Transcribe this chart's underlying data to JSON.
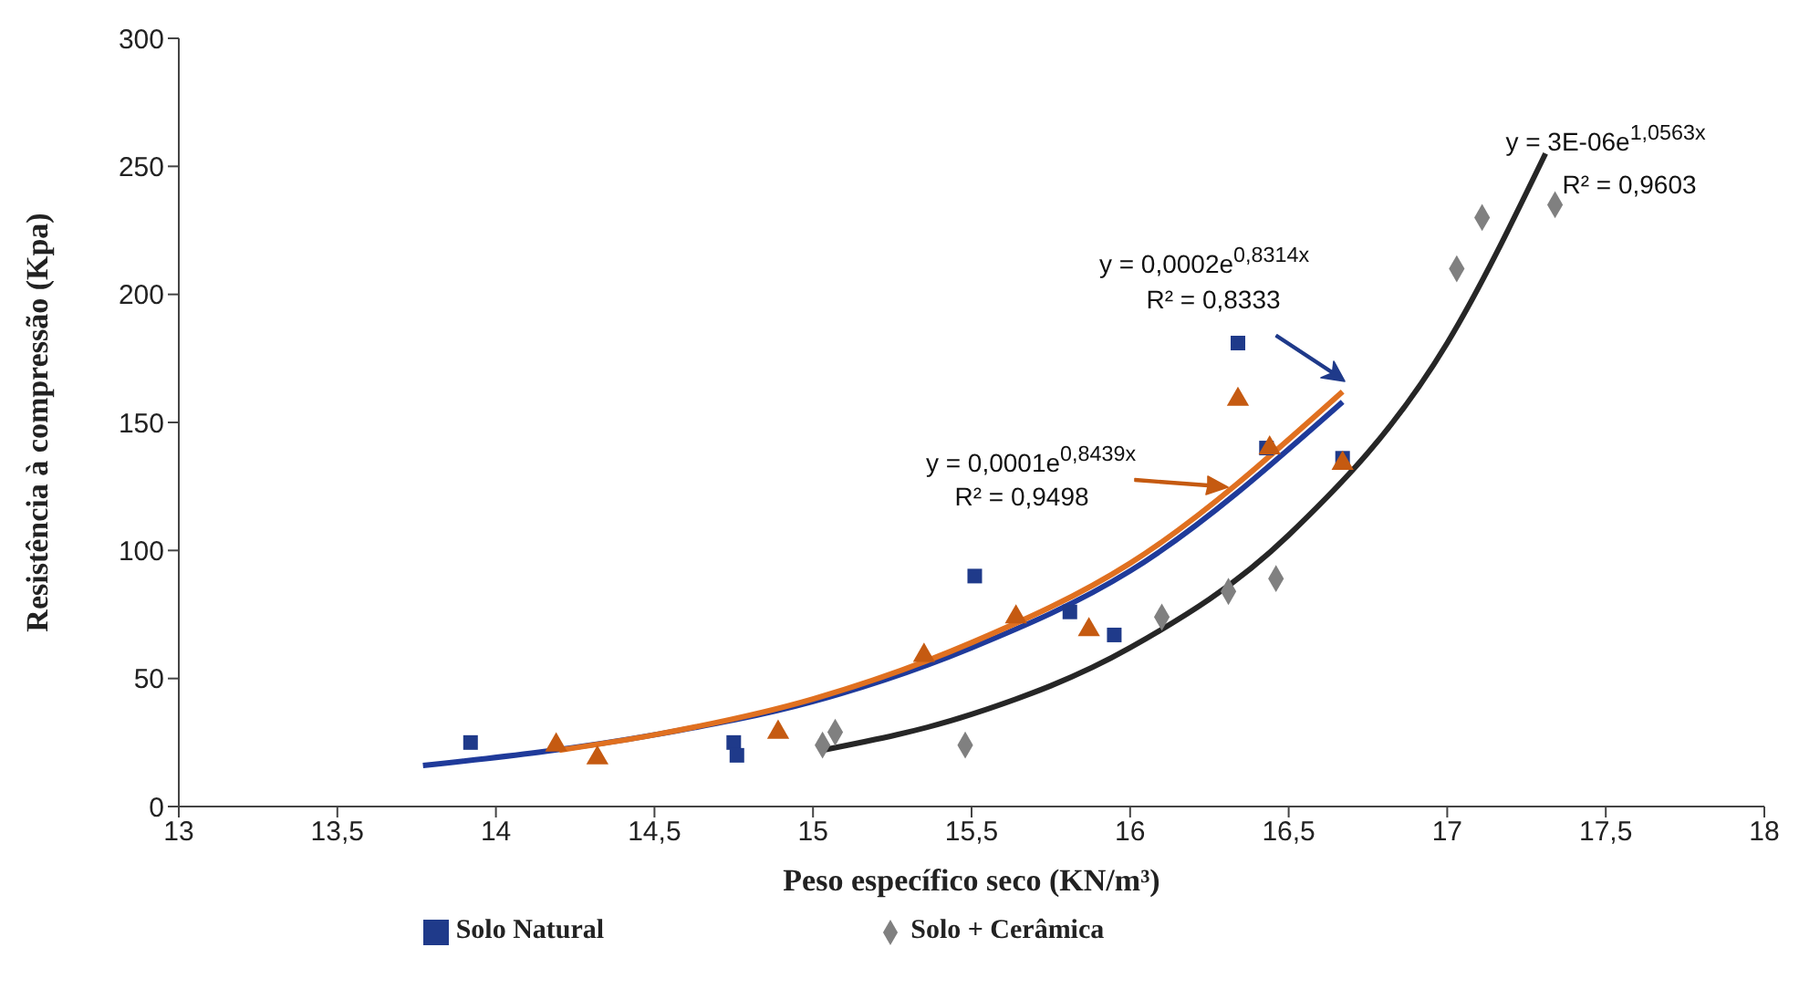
{
  "chart_data": {
    "type": "scatter",
    "xlabel": "Peso específico seco (KN/m³)",
    "ylabel": "Resistência à compressão (Kpa)",
    "xlim": [
      13,
      18
    ],
    "xticks": [
      13,
      {
        "value": 13.5,
        "label": "13,5"
      },
      14,
      {
        "value": 14.5,
        "label": "14,5"
      },
      15,
      {
        "value": 15.5,
        "label": "15,5"
      },
      16,
      {
        "value": 16.5,
        "label": "16,5"
      },
      17,
      {
        "value": 17.5,
        "label": "17,5"
      },
      18
    ],
    "ylim": [
      0,
      300
    ],
    "yticks": [
      0,
      50,
      100,
      150,
      200,
      250,
      300
    ],
    "legend": "bottom",
    "series": [
      {
        "name": "Solo Natural",
        "color": "#1f3a8a",
        "marker": "square",
        "x": [
          13.92,
          14.75,
          14.76,
          15.51,
          15.81,
          15.95,
          16.34,
          16.43,
          16.67
        ],
        "values": [
          25,
          25,
          20,
          90,
          76,
          67,
          181,
          140,
          136
        ]
      },
      {
        "color": "#c55a11",
        "marker": "triangle",
        "x": [
          14.19,
          14.32,
          14.89,
          15.35,
          15.64,
          15.87,
          16.34,
          16.44,
          16.67
        ],
        "values": [
          24,
          19,
          29,
          59,
          74,
          69,
          159,
          140,
          134
        ]
      },
      {
        "name": "Solo + Cerâmica",
        "color": "#808080",
        "marker": "diamond",
        "x": [
          15.03,
          15.07,
          15.48,
          16.1,
          16.31,
          16.46,
          17.03,
          17.11,
          17.34
        ],
        "values": [
          24,
          29,
          24,
          74,
          84,
          89,
          210,
          230,
          235
        ]
      },
      {
        "type": "line",
        "color": "#1f3a9a",
        "x": [
          13.77,
          14.5,
          15,
          15.5,
          16,
          16.67
        ],
        "values": [
          16,
          28,
          41,
          62,
          92,
          158
        ]
      },
      {
        "type": "line",
        "color": "#e07020",
        "x": [
          14.2,
          14.5,
          15,
          15.5,
          16,
          16.67
        ],
        "values": [
          22,
          28,
          42,
          64,
          95,
          162
        ]
      },
      {
        "type": "line",
        "color": "#262626",
        "x": [
          15.03,
          15.5,
          16,
          16.5,
          17,
          17.31
        ],
        "values": [
          22,
          36,
          62,
          106,
          181,
          255
        ]
      }
    ],
    "annotations": [
      "y = 3E-06e$^{1,0563x}$",
      "R² = 0,9603",
      "y = 0,0002e$^{0,8314x}$",
      "R² = 0,8333",
      "y = 0,0001e$^{0,8439x}$",
      "R² = 0,9498"
    ]
  }
}
